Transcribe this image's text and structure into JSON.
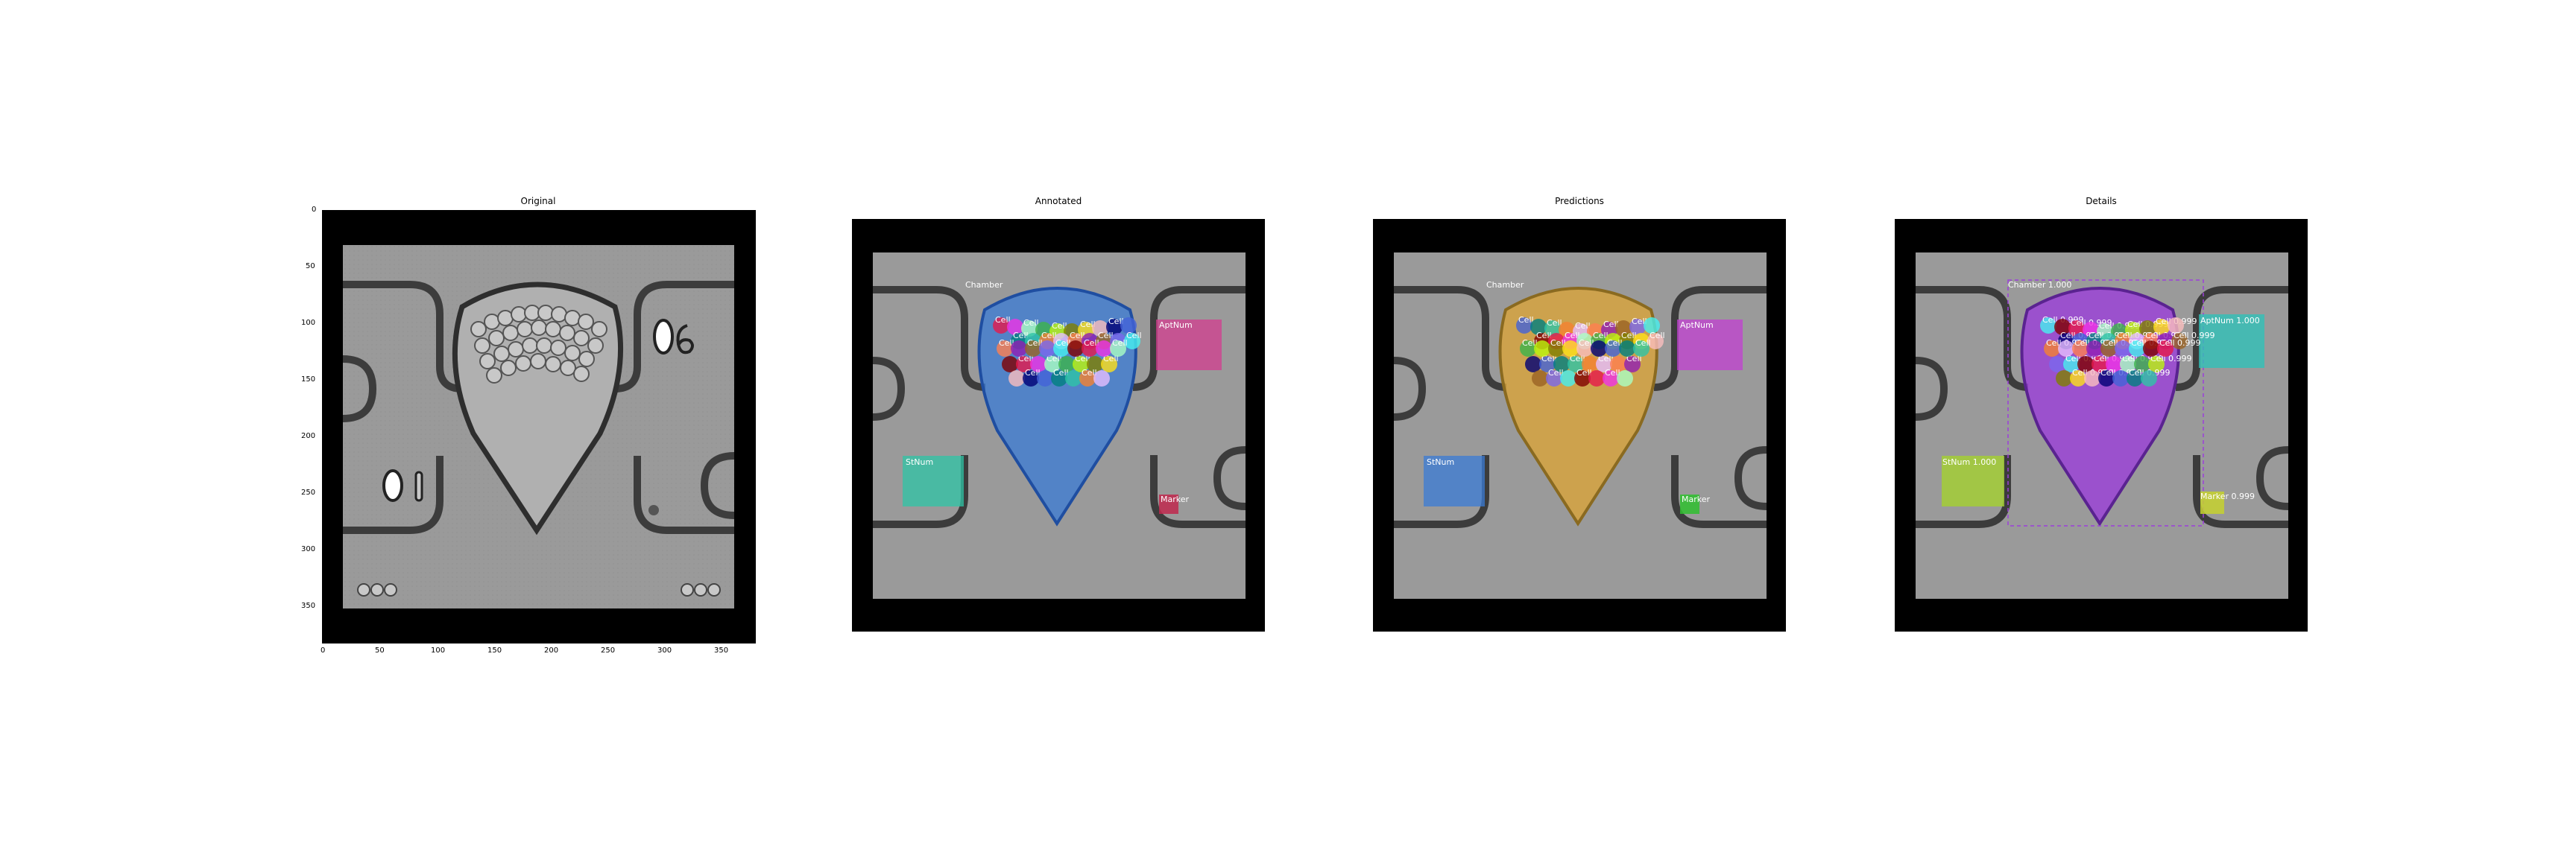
{
  "panels": [
    {
      "title": "Original"
    },
    {
      "title": "Annotated"
    },
    {
      "title": "Predictions"
    },
    {
      "title": "Details"
    }
  ],
  "axes": {
    "x_ticks": [
      "0",
      "50",
      "100",
      "150",
      "200",
      "250",
      "300",
      "350"
    ],
    "y_ticks": [
      "0",
      "50",
      "100",
      "150",
      "200",
      "250",
      "300",
      "350"
    ]
  },
  "labels": {
    "chamber": "Chamber",
    "aptnum": "AptNum",
    "stnum": "StNum",
    "marker": "Marker",
    "cell": "Cell",
    "chamber_score": "Chamber 1.000",
    "aptnum_score": "AptNum 1.000",
    "stnum_score": "StNum 1.000",
    "marker_score": "Marker 0.999",
    "cell_score": "Cell 0.999"
  },
  "colors": {
    "annot_chamber": "#3a7bd5",
    "annot_aptnum": "#d33c8f",
    "annot_stnum": "#2ec4a6",
    "annot_marker": "#c0284e",
    "pred_chamber": "#d9a43a",
    "pred_aptnum": "#c23fd1",
    "pred_stnum": "#3a7bd5",
    "pred_marker": "#2fbf2f",
    "det_chamber": "#9b3fd9",
    "det_aptnum": "#31c0b8",
    "det_stnum": "#a4d12f",
    "det_marker": "#c6d12f"
  }
}
